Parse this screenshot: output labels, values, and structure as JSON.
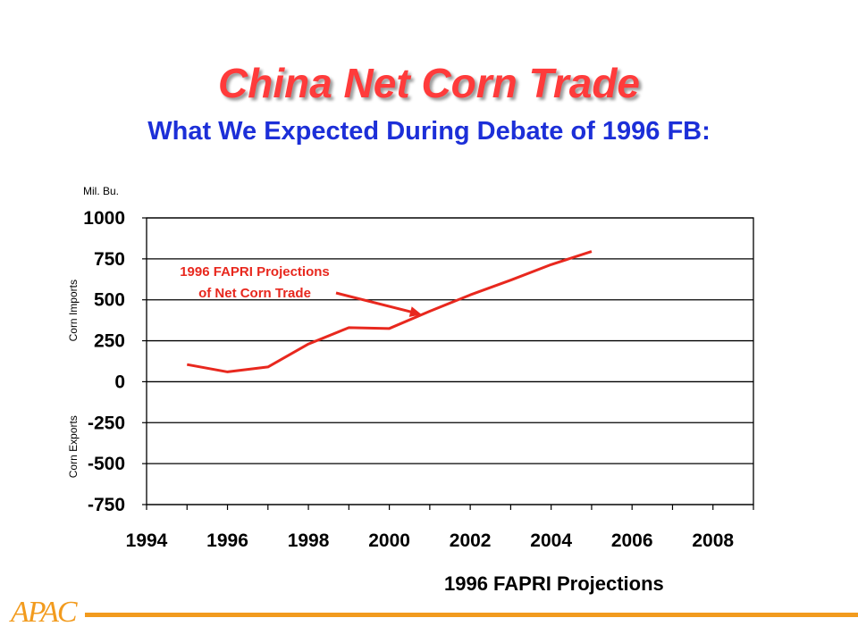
{
  "slide": {
    "title": "China Net Corn Trade",
    "subtitle": "What We Expected During Debate of 1996 FB:",
    "footnote": "1996 FAPRI Projections",
    "logo": "APAC"
  },
  "colors": {
    "title": "#ff3b3b",
    "subtitle": "#1c2fd8",
    "series": "#e8281e",
    "annotation": "#e8281e",
    "logo": "#f29b1e"
  },
  "chart_data": {
    "type": "line",
    "unit_label": "Mil. Bu.",
    "ylabel_upper": "Corn Imports",
    "ylabel_lower": "Corn Exports",
    "xlim": [
      1994,
      2009
    ],
    "ylim": [
      -750,
      1000
    ],
    "x_ticks": [
      1994,
      1996,
      1998,
      2000,
      2002,
      2004,
      2006,
      2008
    ],
    "y_ticks": [
      1000,
      750,
      500,
      250,
      0,
      -250,
      -500,
      -750
    ],
    "y_tick_labels": [
      "1000",
      "750",
      "500",
      "250",
      "0",
      "-250",
      "-500",
      "-750"
    ],
    "grid": true,
    "annotation": {
      "lines": [
        "1996 FAPRI Projections",
        "of Net Corn Trade"
      ],
      "points_to": {
        "x": 2000.8,
        "y": 410
      }
    },
    "series": [
      {
        "x": [
          1995,
          1996,
          1997,
          1998,
          1999,
          2000,
          2001,
          2002,
          2003,
          2004,
          2005
        ],
        "values": [
          105,
          60,
          90,
          230,
          330,
          325,
          430,
          530,
          620,
          715,
          795
        ]
      }
    ]
  }
}
